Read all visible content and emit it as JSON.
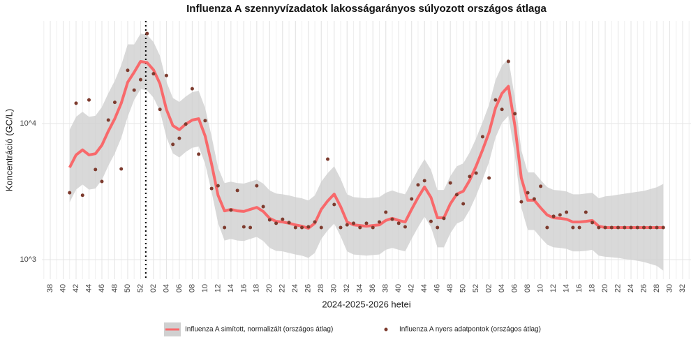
{
  "chart_data": {
    "type": "line",
    "title": "Influenza A szennyvízadatok lakosságarányos súlyozott országos átlaga",
    "x_label": "2024-2025-2026 hetei",
    "y_label": "Koncentráció (GC/L)",
    "ylog": true,
    "grid": true,
    "legend": "bottom",
    "xlim": [
      -1.3,
      99.3
    ],
    "ylim": [
      718,
      56700
    ],
    "yticks": [
      {
        "value": 1000,
        "label": "10^3"
      },
      {
        "value": 10000,
        "label": "10^4"
      }
    ],
    "xticks": [
      {
        "value": 0,
        "label": "38"
      },
      {
        "value": 2,
        "label": "40"
      },
      {
        "value": 4,
        "label": "42"
      },
      {
        "value": 6,
        "label": "44"
      },
      {
        "value": 8,
        "label": "46"
      },
      {
        "value": 10,
        "label": "48"
      },
      {
        "value": 12,
        "label": "50"
      },
      {
        "value": 14,
        "label": "52"
      },
      {
        "value": 16,
        "label": "02"
      },
      {
        "value": 18,
        "label": "04"
      },
      {
        "value": 20,
        "label": "06"
      },
      {
        "value": 22,
        "label": "08"
      },
      {
        "value": 24,
        "label": "10"
      },
      {
        "value": 26,
        "label": "12"
      },
      {
        "value": 28,
        "label": "14"
      },
      {
        "value": 30,
        "label": "16"
      },
      {
        "value": 32,
        "label": "18"
      },
      {
        "value": 34,
        "label": "20"
      },
      {
        "value": 36,
        "label": "22"
      },
      {
        "value": 38,
        "label": "24"
      },
      {
        "value": 40,
        "label": "26"
      },
      {
        "value": 42,
        "label": "28"
      },
      {
        "value": 44,
        "label": "30"
      },
      {
        "value": 46,
        "label": "32"
      },
      {
        "value": 48,
        "label": "34"
      },
      {
        "value": 50,
        "label": "36"
      },
      {
        "value": 52,
        "label": "38"
      },
      {
        "value": 54,
        "label": "40"
      },
      {
        "value": 56,
        "label": "42"
      },
      {
        "value": 58,
        "label": "44"
      },
      {
        "value": 60,
        "label": "46"
      },
      {
        "value": 62,
        "label": "48"
      },
      {
        "value": 64,
        "label": "50"
      },
      {
        "value": 66,
        "label": "52"
      },
      {
        "value": 68,
        "label": "02"
      },
      {
        "value": 70,
        "label": "04"
      },
      {
        "value": 72,
        "label": "06"
      },
      {
        "value": 74,
        "label": "08"
      },
      {
        "value": 76,
        "label": "10"
      },
      {
        "value": 78,
        "label": "12"
      },
      {
        "value": 80,
        "label": "14"
      },
      {
        "value": 82,
        "label": "16"
      },
      {
        "value": 84,
        "label": "18"
      },
      {
        "value": 86,
        "label": "20"
      },
      {
        "value": 88,
        "label": "22"
      },
      {
        "value": 90,
        "label": "24"
      },
      {
        "value": 92,
        "label": "26"
      },
      {
        "value": 94,
        "label": "28"
      },
      {
        "value": 96,
        "label": "30"
      },
      {
        "value": 98,
        "label": "32"
      }
    ],
    "vline_x": 14.8,
    "x": [
      3,
      4,
      5,
      6,
      7,
      8,
      9,
      10,
      11,
      12,
      13,
      14,
      15,
      16,
      17,
      18,
      19,
      20,
      21,
      22,
      23,
      24,
      25,
      26,
      27,
      28,
      29,
      30,
      31,
      32,
      33,
      34,
      35,
      36,
      37,
      38,
      39,
      40,
      41,
      42,
      43,
      44,
      45,
      46,
      47,
      48,
      49,
      50,
      51,
      52,
      53,
      54,
      55,
      56,
      57,
      58,
      59,
      60,
      61,
      62,
      63,
      64,
      65,
      66,
      67,
      68,
      69,
      70,
      71,
      72,
      73,
      74,
      75,
      76,
      77,
      78,
      79,
      80,
      81,
      82,
      83,
      84,
      85,
      86,
      87,
      88,
      89,
      90,
      91,
      92,
      93,
      94,
      95
    ],
    "series": [
      {
        "name": "Influenza A simított, normalizált (országos átlag)",
        "color": "#f8696b",
        "band_color": "#d0d0d0",
        "values": [
          4750,
          5880,
          6400,
          5880,
          6000,
          6930,
          8800,
          10850,
          14100,
          20100,
          23800,
          28600,
          28000,
          24800,
          19600,
          12700,
          9650,
          9000,
          9900,
          10600,
          10850,
          8100,
          5040,
          2970,
          2280,
          2340,
          2280,
          2260,
          2340,
          2420,
          2260,
          2010,
          1910,
          1890,
          1850,
          1800,
          1760,
          1700,
          1850,
          2340,
          2700,
          3030,
          2450,
          1890,
          1800,
          1780,
          1760,
          1780,
          1800,
          1940,
          2010,
          1940,
          1890,
          2340,
          2860,
          3420,
          2860,
          2030,
          2030,
          2570,
          3030,
          3180,
          3830,
          4870,
          6400,
          8590,
          13000,
          16640,
          18760,
          9650,
          3980,
          2730,
          2730,
          2400,
          2130,
          2030,
          2010,
          1980,
          1890,
          1890,
          1910,
          1940,
          1760,
          1720,
          1720,
          1720,
          1720,
          1720,
          1720,
          1720,
          1720,
          1720,
          1720
        ],
        "upper": [
          9000,
          11200,
          12200,
          11200,
          11400,
          13200,
          16700,
          20600,
          26800,
          38200,
          38100,
          45800,
          44800,
          39700,
          31400,
          20300,
          15400,
          14400,
          15800,
          17000,
          17400,
          13000,
          8060,
          4750,
          3650,
          3740,
          3650,
          3620,
          3740,
          3870,
          3620,
          3220,
          3060,
          3020,
          2960,
          2880,
          2820,
          2720,
          2960,
          3740,
          4320,
          4850,
          3920,
          3020,
          2880,
          2850,
          2820,
          2850,
          2880,
          3100,
          3220,
          3100,
          3020,
          3740,
          4580,
          5470,
          4580,
          3250,
          3250,
          4110,
          4850,
          5090,
          6130,
          7790,
          10240,
          13740,
          20800,
          26600,
          30000,
          15400,
          6370,
          4370,
          4370,
          3840,
          3410,
          3250,
          3220,
          3170,
          3020,
          3020,
          3060,
          3100,
          2820,
          2920,
          2950,
          3000,
          3050,
          3100,
          3150,
          3200,
          3300,
          3400,
          3600
        ],
        "lower": [
          2640,
          3270,
          3560,
          3270,
          3330,
          3850,
          4890,
          6030,
          7830,
          11200,
          14900,
          17900,
          17500,
          15500,
          12300,
          7940,
          6030,
          5630,
          6190,
          6630,
          6780,
          5060,
          3150,
          1860,
          1380,
          1420,
          1380,
          1370,
          1420,
          1470,
          1370,
          1220,
          1160,
          1150,
          1120,
          1090,
          1070,
          1030,
          1120,
          1420,
          1640,
          1840,
          1480,
          1150,
          1090,
          1080,
          1070,
          1080,
          1090,
          1180,
          1220,
          1180,
          1150,
          1420,
          1730,
          2070,
          1730,
          1230,
          1230,
          1560,
          1840,
          1930,
          2320,
          2950,
          3880,
          5210,
          7880,
          10100,
          11400,
          5850,
          2410,
          1650,
          1650,
          1450,
          1290,
          1230,
          1220,
          1200,
          1150,
          1150,
          1160,
          1180,
          1070,
          1050,
          1040,
          1030,
          1010,
          1000,
          980,
          960,
          930,
          900,
          830
        ]
      },
      {
        "name": "Influenza A nyers adatpontok (országos átlag)",
        "color": "#7d3b2e",
        "values": [
          3100,
          14100,
          2970,
          14900,
          4590,
          3750,
          10600,
          14300,
          4640,
          24600,
          17600,
          21000,
          45800,
          23200,
          12700,
          22500,
          7020,
          7790,
          9900,
          18000,
          5950,
          10500,
          3330,
          3490,
          1720,
          2310,
          3220,
          1740,
          1720,
          3490,
          2450,
          1960,
          1850,
          1980,
          1870,
          1720,
          1720,
          1740,
          1890,
          1720,
          5470,
          2540,
          1720,
          1800,
          1850,
          1720,
          1850,
          1720,
          1890,
          2230,
          1980,
          1850,
          1740,
          2790,
          3540,
          3800,
          1910,
          1720,
          2010,
          3660,
          3000,
          2570,
          4080,
          4320,
          8000,
          3980,
          14900,
          12700,
          28600,
          11800,
          2660,
          3100,
          2790,
          3460,
          1720,
          2080,
          2130,
          2230,
          1720,
          1720,
          2230,
          1870,
          1720,
          1720,
          1720,
          1720,
          1720,
          1720,
          1720,
          1720,
          1720,
          1720,
          1720
        ]
      }
    ]
  }
}
